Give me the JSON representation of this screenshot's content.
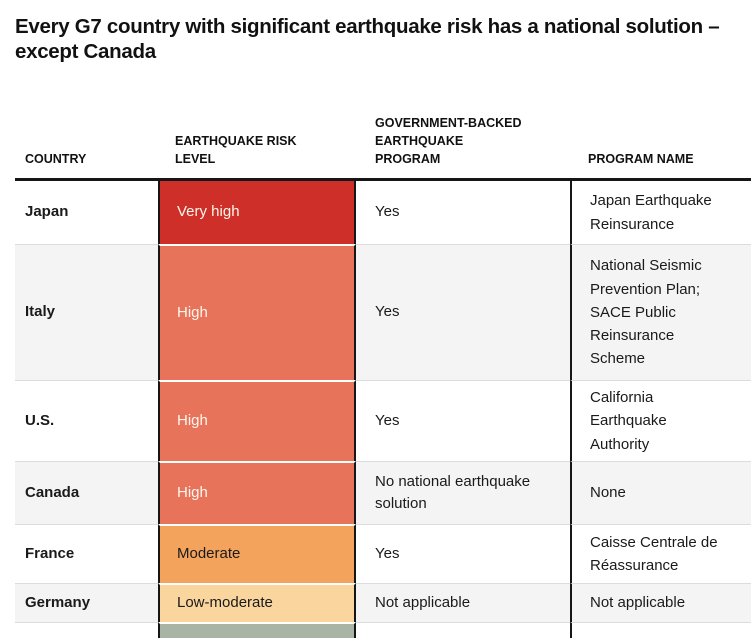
{
  "chart_data": {
    "type": "table",
    "title": "Every G7 country with significant earthquake risk has a national solution – except Canada",
    "columns": [
      "COUNTRY",
      "EARTHQUAKE RISK LEVEL",
      "GOVERNMENT-BACKED EARTHQUAKE PROGRAM",
      "PROGRAM NAME"
    ],
    "rows": [
      {
        "country": "Japan",
        "risk": "Very high",
        "risk_color": "#ce2f28",
        "risk_text_color": "#fdf6ec",
        "program": "Yes",
        "program_name": "Japan Earthquake Reinsurance"
      },
      {
        "country": "Italy",
        "risk": "High",
        "risk_color": "#e8735b",
        "risk_text_color": "#fdf6ec",
        "program": "Yes",
        "program_name": "National Seismic Prevention Plan; SACE Public Reinsurance Scheme"
      },
      {
        "country": "U.S.",
        "risk": "High",
        "risk_color": "#e8735b",
        "risk_text_color": "#fdf6ec",
        "program": "Yes",
        "program_name": "California Earthquake Authority"
      },
      {
        "country": "Canada",
        "risk": "High",
        "risk_color": "#e8735b",
        "risk_text_color": "#fdf6ec",
        "program": "No national earthquake solution",
        "program_name": "None"
      },
      {
        "country": "France",
        "risk": "Moderate",
        "risk_color": "#f3a35c",
        "risk_text_color": "#1a1a1a",
        "program": "Yes",
        "program_name": "Caisse Centrale de Réassurance"
      },
      {
        "country": "Germany",
        "risk": "Low-moderate",
        "risk_color": "#fad69e",
        "risk_text_color": "#1a1a1a",
        "program": "Not applicable",
        "program_name": "Not applicable"
      }
    ],
    "partial_row": {
      "risk_color": "#a9b4a4"
    },
    "layout": {
      "grid": "off",
      "risk_column_border_color": "#161616",
      "header_rule_color": "#161616",
      "alt_row_color": "#f4f4f4",
      "row_separator_color": "#dcdcdc"
    }
  }
}
